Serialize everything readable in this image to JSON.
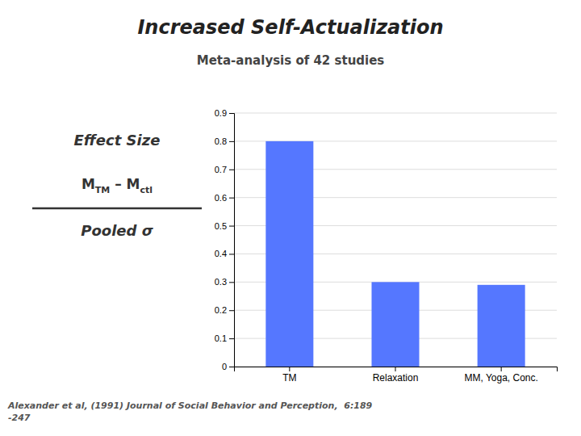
{
  "chart_data": {
    "type": "bar",
    "title": "Increased Self-Actualization",
    "subtitle": "Meta-analysis of 42 studies",
    "categories": [
      "TM",
      "Relaxation",
      "MM, Yoga, Conc."
    ],
    "values": [
      0.8,
      0.3,
      0.29
    ],
    "color": "#5577ff",
    "ylim": [
      0,
      0.9
    ],
    "yticks": [
      0,
      0.1,
      0.2,
      0.3,
      0.4,
      0.5,
      0.6,
      0.7,
      0.8,
      0.9
    ],
    "grid": true,
    "annotations": [
      "Effect Size",
      "M",
      "TM",
      " – M",
      "ctl",
      "Pooled σ"
    ],
    "citation": [
      "Alexander et al, (1991) Journal of Social Behavior and Perception,  6:189",
      "-247"
    ]
  }
}
